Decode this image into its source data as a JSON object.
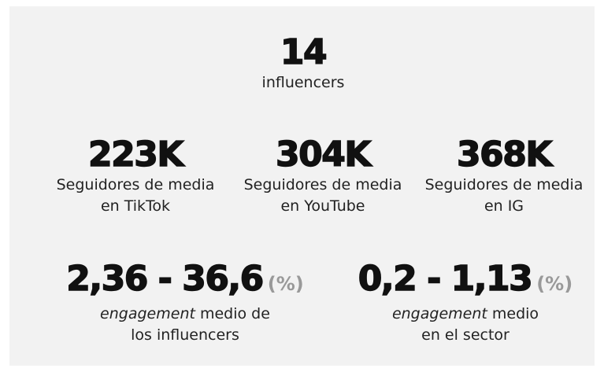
{
  "headline": {
    "value": "14",
    "label": "influencers"
  },
  "followers": [
    {
      "value": "223K",
      "label_lines": [
        "Seguidores de media",
        "en TikTok"
      ]
    },
    {
      "value": "304K",
      "label_lines": [
        "Seguidores de media",
        "en YouTube"
      ]
    },
    {
      "value": "368K",
      "label_lines": [
        "Seguidores de media",
        "en IG"
      ]
    }
  ],
  "engagement": [
    {
      "value": "2,36 - 36,6",
      "unit": "(%)",
      "label_em": "engagement",
      "label_rest": "medio de",
      "label_line2": "los influencers"
    },
    {
      "value": "0,2 - 1,13",
      "unit": "(%)",
      "label_em": "engagement",
      "label_rest": "medio",
      "label_line2": "en el sector"
    }
  ]
}
